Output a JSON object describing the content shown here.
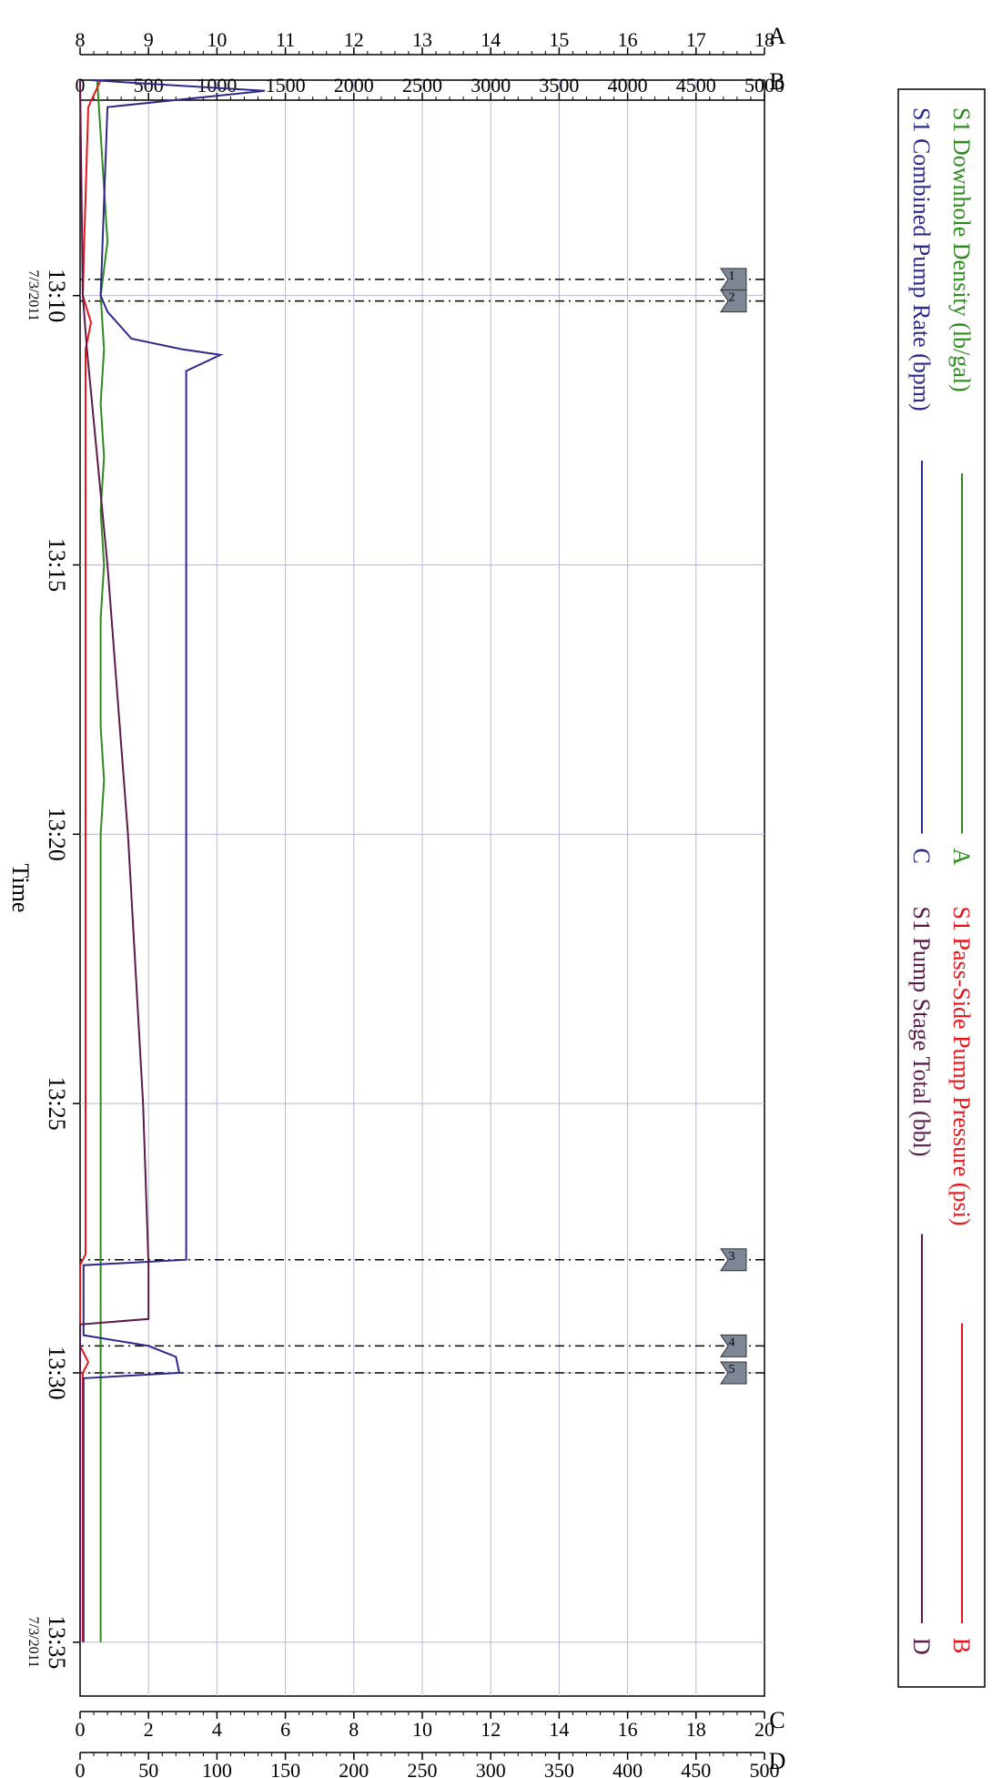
{
  "chart_data": {
    "type": "line",
    "xlabel": "Time",
    "x_ticks": [
      "13:10",
      "13:15",
      "13:20",
      "13:25",
      "13:30",
      "13:35"
    ],
    "x_date": "7/3/2011",
    "x_start_date_label": "7/3/2011",
    "x_end_date_label": "7/3/2011",
    "axes": {
      "A": {
        "letter": "A",
        "min": 8,
        "max": 18,
        "ticks": [
          "8",
          "9",
          "10",
          "11",
          "12",
          "13",
          "14",
          "15",
          "16",
          "17",
          "18"
        ]
      },
      "B": {
        "letter": "B",
        "min": 0,
        "max": 5000,
        "ticks": [
          "0",
          "500",
          "1000",
          "1500",
          "2000",
          "2500",
          "3000",
          "3500",
          "4000",
          "4500",
          "5000"
        ]
      },
      "C": {
        "letter": "C",
        "min": 0,
        "max": 20,
        "ticks": [
          "0",
          "2",
          "4",
          "6",
          "8",
          "10",
          "12",
          "14",
          "16",
          "18",
          "20"
        ]
      },
      "D": {
        "letter": "D",
        "min": 0,
        "max": 500,
        "ticks": [
          "0",
          "50",
          "100",
          "150",
          "200",
          "250",
          "300",
          "350",
          "400",
          "450",
          "500"
        ]
      }
    },
    "series": [
      {
        "name": "S1 Downhole Density (lb/gal)",
        "axis": "A",
        "letter": "A",
        "color": "#2e8b1e",
        "points": [
          [
            "13:06",
            8.25
          ],
          [
            "13:07",
            8.3
          ],
          [
            "13:08",
            8.35
          ],
          [
            "13:09",
            8.4
          ],
          [
            "13:10",
            8.3
          ],
          [
            "13:11",
            8.35
          ],
          [
            "13:12",
            8.3
          ],
          [
            "13:13",
            8.35
          ],
          [
            "13:14",
            8.3
          ],
          [
            "13:15",
            8.35
          ],
          [
            "13:16",
            8.3
          ],
          [
            "13:17",
            8.3
          ],
          [
            "13:18",
            8.3
          ],
          [
            "13:19",
            8.35
          ],
          [
            "13:20",
            8.3
          ],
          [
            "13:21",
            8.3
          ],
          [
            "13:22",
            8.3
          ],
          [
            "13:23",
            8.3
          ],
          [
            "13:24",
            8.3
          ],
          [
            "13:25",
            8.3
          ],
          [
            "13:26",
            8.3
          ],
          [
            "13:27",
            8.3
          ],
          [
            "13:28",
            8.3
          ],
          [
            "13:29",
            8.3
          ],
          [
            "13:30",
            8.3
          ],
          [
            "13:31",
            8.3
          ],
          [
            "13:32",
            8.3
          ],
          [
            "13:33",
            8.3
          ],
          [
            "13:34",
            8.3
          ],
          [
            "13:35",
            8.3
          ]
        ]
      },
      {
        "name": "S1 Pass-Side Pump Pressure (psi)",
        "axis": "B",
        "letter": "B",
        "color": "#e8141b",
        "points": [
          [
            "13:06",
            150
          ],
          [
            "13:06.5",
            60
          ],
          [
            "13:09",
            30
          ],
          [
            "13:10",
            20
          ],
          [
            "13:10.5",
            80
          ],
          [
            "13:11",
            40
          ],
          [
            "13:15",
            40
          ],
          [
            "13:20",
            40
          ],
          [
            "13:25",
            40
          ],
          [
            "13:27.8",
            40
          ],
          [
            "13:28",
            0
          ],
          [
            "13:29.5",
            0
          ],
          [
            "13:29.8",
            60
          ],
          [
            "13:30",
            20
          ],
          [
            "13:35",
            20
          ]
        ]
      },
      {
        "name": "S1 Combined Pump Rate (bpm)",
        "axis": "C",
        "letter": "C",
        "color": "#2b2a8c",
        "points": [
          [
            "13:06",
            0.3
          ],
          [
            "13:06.2",
            5.4
          ],
          [
            "13:06.5",
            0.8
          ],
          [
            "13:10",
            0.6
          ],
          [
            "13:10.3",
            0.8
          ],
          [
            "13:10.8",
            1.5
          ],
          [
            "13:11",
            3
          ],
          [
            "13:11.1",
            4.1
          ],
          [
            "13:11.4",
            3.1
          ],
          [
            "13:15",
            3.1
          ],
          [
            "13:20",
            3.1
          ],
          [
            "13:25",
            3.1
          ],
          [
            "13:27.9",
            3.1
          ],
          [
            "13:28",
            0.1
          ],
          [
            "13:29.3",
            0.1
          ],
          [
            "13:29.5",
            2.0
          ],
          [
            "13:29.7",
            2.8
          ],
          [
            "13:30",
            2.9
          ],
          [
            "13:30.1",
            0.1
          ],
          [
            "13:35",
            0.1
          ]
        ]
      },
      {
        "name": "S1 Pump Stage Total (bbl)",
        "axis": "D",
        "letter": "D",
        "color": "#5a1a4a",
        "points": [
          [
            "13:06",
            0
          ],
          [
            "13:10",
            2
          ],
          [
            "13:11",
            5
          ],
          [
            "13:15",
            20
          ],
          [
            "13:20",
            35
          ],
          [
            "13:25",
            46
          ],
          [
            "13:28",
            50
          ],
          [
            "13:28.2",
            50
          ],
          [
            "13:29",
            50
          ],
          [
            "13:29.1",
            0
          ],
          [
            "13:30",
            0
          ],
          [
            "13:35",
            0
          ]
        ]
      }
    ],
    "events": [
      {
        "label": "1",
        "time": "13:09.7"
      },
      {
        "label": "2",
        "time": "13:10.1"
      },
      {
        "label": "3",
        "time": "13:27.9"
      },
      {
        "label": "4",
        "time": "13:29.5"
      },
      {
        "label": "5",
        "time": "13:30"
      }
    ],
    "x_range": [
      "13:06",
      "13:36"
    ],
    "grid": true,
    "legend_position": "top",
    "orientation": "rotated 90 degrees clockwise"
  }
}
